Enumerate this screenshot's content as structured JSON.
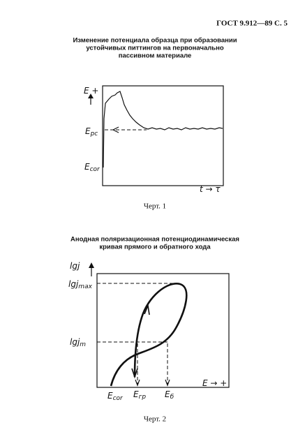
{
  "header": {
    "text": "ГОСТ 9.912—89 С. 5"
  },
  "figure1": {
    "title": [
      "Изменение потенциала образца при образовании",
      "устойчивых питтингов на первоначально",
      "пассивном материале"
    ],
    "labels": {
      "y_axis": {
        "main": "E",
        "sign": "+"
      },
      "e_pc": {
        "main": "E",
        "sub": "pc"
      },
      "e_cor": {
        "main": "E",
        "sub": "cor"
      },
      "x_axis": {
        "main": "t",
        "arrow": "→ τ"
      }
    },
    "caption": "Черт. 1"
  },
  "figure2": {
    "title": [
      "Анодная поляризационная потенциодинамическая",
      "кривая прямого и обратного хода"
    ],
    "labels": {
      "y_axis": {
        "main": "lg",
        "var": "j"
      },
      "lgj_max": {
        "main": "lg",
        "var": "j",
        "sub": "max"
      },
      "lgj_m": {
        "main": "lg",
        "var": "j",
        "sub": "m"
      },
      "e_cor": {
        "main": "E",
        "sub": "cor"
      },
      "e_gr": {
        "main": "E",
        "sub": "гр"
      },
      "e_b": {
        "main": "E",
        "sub": "б"
      },
      "x_axis": {
        "main": "E",
        "arrow": "→ +"
      }
    },
    "caption": "Черт. 2"
  }
}
